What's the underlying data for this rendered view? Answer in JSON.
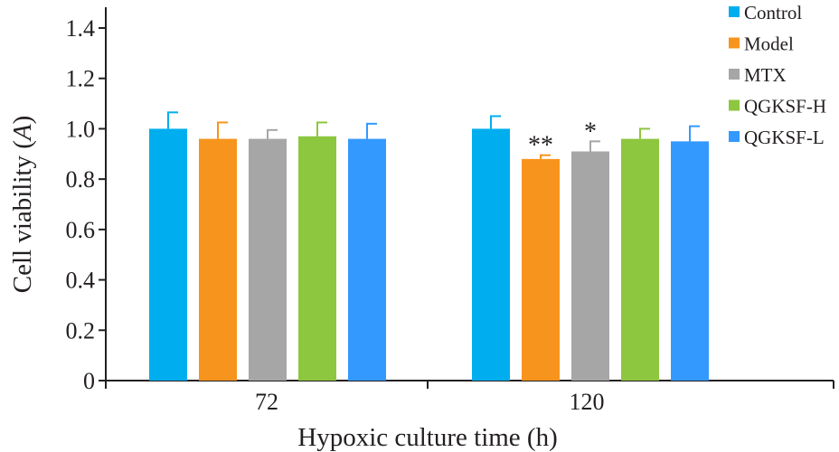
{
  "chart_data": {
    "type": "bar",
    "xlabel": "Hypoxic culture time (h)",
    "ylabel_prefix": "Cell viability (",
    "ylabel_var": "A",
    "ylabel_suffix": ")",
    "ylim": [
      0,
      1.4
    ],
    "yticks": [
      "0",
      "0.2",
      "0.4",
      "0.6",
      "0.8",
      "1.0",
      "1.2",
      "1.4"
    ],
    "categories": [
      "72",
      "120"
    ],
    "grid": false,
    "legend_position": "top-right",
    "series": [
      {
        "name": "Control",
        "color": "#00aeef",
        "values": [
          1.0,
          1.0
        ],
        "errors": [
          0.065,
          0.05
        ],
        "sig": [
          "",
          ""
        ]
      },
      {
        "name": "Model",
        "color": "#f7941d",
        "values": [
          0.96,
          0.88
        ],
        "errors": [
          0.065,
          0.015
        ],
        "sig": [
          "",
          "**"
        ]
      },
      {
        "name": "MTX",
        "color": "#a6a6a6",
        "values": [
          0.96,
          0.91
        ],
        "errors": [
          0.035,
          0.04
        ],
        "sig": [
          "",
          "*"
        ]
      },
      {
        "name": "QGKSF-H",
        "color": "#8dc63f",
        "values": [
          0.97,
          0.96
        ],
        "errors": [
          0.055,
          0.04
        ],
        "sig": [
          "",
          ""
        ]
      },
      {
        "name": "QGKSF-L",
        "color": "#3399ff",
        "values": [
          0.96,
          0.95
        ],
        "errors": [
          0.06,
          0.06
        ],
        "sig": [
          "",
          ""
        ]
      }
    ]
  }
}
